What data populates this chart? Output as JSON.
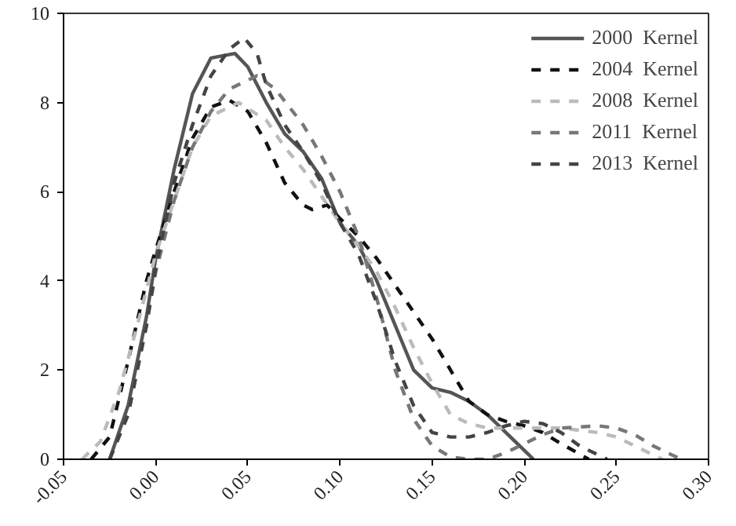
{
  "chart_data": {
    "type": "line",
    "xlim": [
      -0.05,
      0.3
    ],
    "ylim": [
      0,
      10
    ],
    "xticks": [
      -0.05,
      {
        "value": 0,
        "label": "0.00"
      },
      0.05,
      {
        "value": 0.1,
        "label": "0.10"
      },
      0.15,
      {
        "value": 0.2,
        "label": "0.20"
      },
      0.25,
      {
        "value": 0.3,
        "label": "0.30"
      }
    ],
    "yticks": [
      0,
      2,
      4,
      6,
      8,
      10
    ],
    "grid": false,
    "legend": "top right",
    "marker": "none",
    "series": [
      {
        "name": "2000  Kernel",
        "color": "#555555",
        "line_style": "solid",
        "x": [
          -0.025,
          -0.015,
          -0.005,
          0.0,
          0.01,
          0.02,
          0.03,
          0.043,
          0.05,
          0.06,
          0.07,
          0.08,
          0.09,
          0.1,
          0.11,
          0.12,
          0.13,
          0.14,
          0.15,
          0.16,
          0.17,
          0.18,
          0.19,
          0.2,
          0.205
        ],
        "values": [
          0,
          1.2,
          3.2,
          4.5,
          6.5,
          8.2,
          9.0,
          9.1,
          8.8,
          8.0,
          7.3,
          6.9,
          6.3,
          5.3,
          4.8,
          4.0,
          3.0,
          2.0,
          1.6,
          1.5,
          1.3,
          1.0,
          0.6,
          0.2,
          0
        ]
      },
      {
        "name": "2004  Kernel",
        "color": "#111111",
        "line_style": "dashed",
        "x": [
          -0.035,
          -0.025,
          -0.015,
          -0.005,
          0.0,
          0.01,
          0.02,
          0.03,
          0.04,
          0.05,
          0.06,
          0.07,
          0.08,
          0.085,
          0.093,
          0.1,
          0.11,
          0.12,
          0.13,
          0.14,
          0.15,
          0.16,
          0.17,
          0.18,
          0.19,
          0.2,
          0.21,
          0.22,
          0.235
        ],
        "values": [
          0,
          0.5,
          2.2,
          4.0,
          4.7,
          6.0,
          7.2,
          7.9,
          8.05,
          7.8,
          7.1,
          6.2,
          5.7,
          5.6,
          5.7,
          5.4,
          5.0,
          4.5,
          3.9,
          3.3,
          2.7,
          2.0,
          1.3,
          1.0,
          0.85,
          0.75,
          0.6,
          0.35,
          0
        ]
      },
      {
        "name": "2008  Kernel",
        "color": "#bbbbbb",
        "line_style": "dashed",
        "x": [
          -0.04,
          -0.03,
          -0.02,
          -0.01,
          0.0,
          0.01,
          0.02,
          0.03,
          0.045,
          0.06,
          0.07,
          0.08,
          0.09,
          0.1,
          0.11,
          0.12,
          0.13,
          0.14,
          0.15,
          0.16,
          0.17,
          0.18,
          0.2,
          0.22,
          0.24,
          0.25,
          0.26,
          0.275
        ],
        "values": [
          0,
          0.4,
          1.5,
          3.0,
          4.6,
          5.8,
          7.0,
          7.7,
          8.0,
          7.6,
          7.0,
          6.5,
          5.9,
          5.3,
          4.8,
          4.2,
          3.4,
          2.5,
          1.7,
          1.0,
          0.8,
          0.7,
          0.7,
          0.7,
          0.6,
          0.5,
          0.3,
          0
        ]
      },
      {
        "name": "2011  Kernel",
        "color": "#777777",
        "line_style": "dashed",
        "x": [
          -0.025,
          -0.015,
          -0.005,
          0.0,
          0.01,
          0.02,
          0.03,
          0.04,
          0.055,
          0.065,
          0.08,
          0.09,
          0.1,
          0.11,
          0.12,
          0.13,
          0.14,
          0.15,
          0.16,
          0.17,
          0.18,
          0.19,
          0.2,
          0.21,
          0.22,
          0.24,
          0.25,
          0.26,
          0.27,
          0.285
        ],
        "values": [
          0,
          1.0,
          3.0,
          4.2,
          5.8,
          7.0,
          7.8,
          8.3,
          8.6,
          8.3,
          7.5,
          6.8,
          6.0,
          5.0,
          3.6,
          2.0,
          0.9,
          0.3,
          0.05,
          0,
          0,
          0.15,
          0.35,
          0.55,
          0.7,
          0.75,
          0.7,
          0.55,
          0.3,
          0
        ]
      },
      {
        "name": "2013  Kernel",
        "color": "#444444",
        "line_style": "dashed",
        "x": [
          -0.025,
          -0.015,
          -0.005,
          0.0,
          0.01,
          0.02,
          0.03,
          0.04,
          0.048,
          0.055,
          0.06,
          0.07,
          0.08,
          0.09,
          0.1,
          0.11,
          0.12,
          0.13,
          0.14,
          0.15,
          0.16,
          0.17,
          0.18,
          0.19,
          0.2,
          0.21,
          0.22,
          0.23,
          0.245
        ],
        "values": [
          0,
          1.0,
          3.0,
          4.3,
          6.2,
          7.5,
          8.6,
          9.2,
          9.45,
          9.1,
          8.4,
          7.5,
          6.9,
          6.2,
          5.3,
          4.6,
          3.5,
          2.2,
          1.2,
          0.6,
          0.5,
          0.5,
          0.6,
          0.75,
          0.85,
          0.8,
          0.6,
          0.3,
          0
        ]
      }
    ]
  }
}
